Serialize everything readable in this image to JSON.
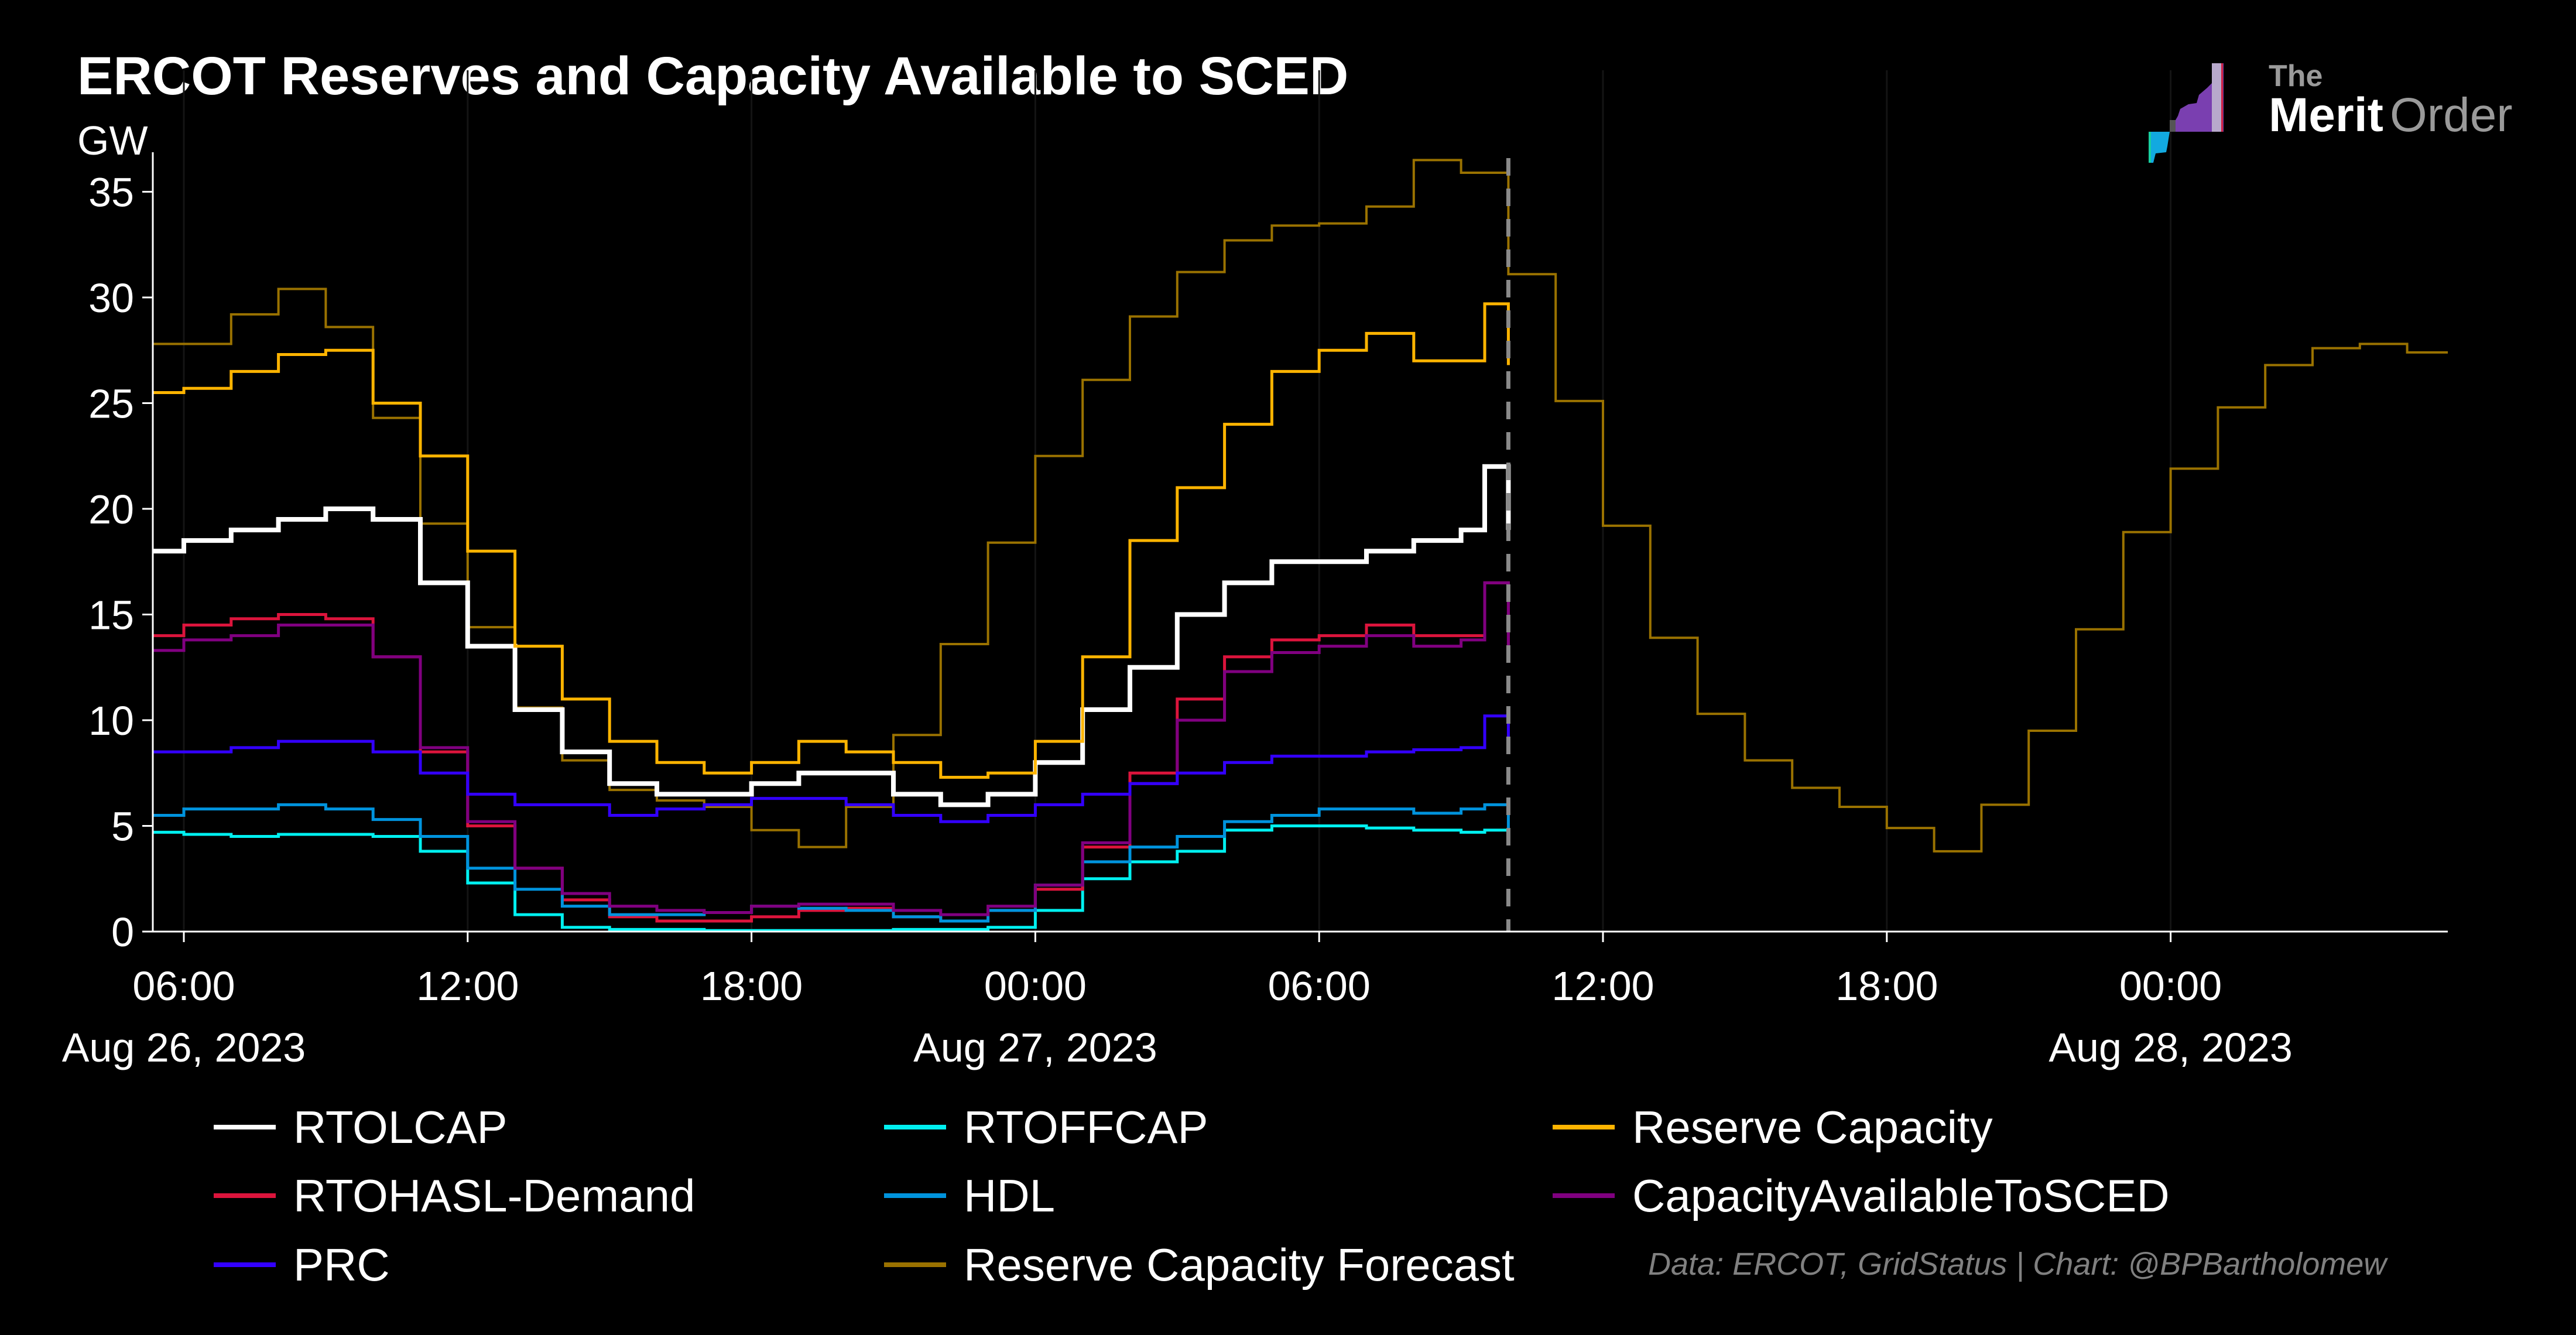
{
  "chart_data": {
    "type": "line",
    "title": "ERCOT Reserves and Capacity Available to SCED",
    "ylabel": "GW",
    "xlabel": "",
    "x_units": "hours since Aug 26, 2023 00:00",
    "xlim": [
      5.33,
      53.86
    ],
    "ylim": [
      0,
      36.5
    ],
    "yticks": [
      0,
      5,
      10,
      15,
      20,
      25,
      30,
      35
    ],
    "xticks": [
      {
        "x": 6,
        "label": "06:00",
        "date": "Aug 26, 2023"
      },
      {
        "x": 12,
        "label": "12:00",
        "date": ""
      },
      {
        "x": 18,
        "label": "18:00",
        "date": ""
      },
      {
        "x": 24,
        "label": "00:00",
        "date": "Aug 27, 2023"
      },
      {
        "x": 30,
        "label": "06:00",
        "date": ""
      },
      {
        "x": 36,
        "label": "12:00",
        "date": ""
      },
      {
        "x": 42,
        "label": "18:00",
        "date": ""
      },
      {
        "x": 48,
        "label": "00:00",
        "date": "Aug 28, 2023"
      }
    ],
    "grid": "vertical-faint",
    "now_marker_x": 34,
    "legend_placement": "bottom",
    "x": [
      5.33,
      6,
      7,
      8,
      9,
      10,
      11,
      12,
      13,
      14,
      15,
      16,
      17,
      18,
      19,
      20,
      21,
      22,
      23,
      24,
      25,
      26,
      27,
      28,
      29,
      30,
      31,
      32,
      33,
      33.5,
      34
    ],
    "series": [
      {
        "name": "RTOLCAP",
        "color": "#ffffff",
        "width": 8,
        "values": [
          18,
          18.5,
          19,
          19.5,
          20,
          19.5,
          16.5,
          13.5,
          10.5,
          8.5,
          7,
          6.5,
          6.5,
          7,
          7.5,
          7.5,
          6.5,
          6,
          6.5,
          8,
          10.5,
          12.5,
          15,
          16.5,
          17.5,
          17.5,
          18,
          18.5,
          19,
          22,
          19
        ]
      },
      {
        "name": "RTOFFCAP",
        "color": "#00f0f0",
        "width": 5,
        "values": [
          4.7,
          4.6,
          4.5,
          4.6,
          4.6,
          4.5,
          3.8,
          2.3,
          0.8,
          0.2,
          0.1,
          0.1,
          0.05,
          0.05,
          0.05,
          0.05,
          0.1,
          0.1,
          0.2,
          1,
          2.5,
          3.3,
          3.8,
          4.8,
          5,
          5,
          4.9,
          4.8,
          4.7,
          4.8,
          4.7
        ]
      },
      {
        "name": "Reserve Capacity",
        "color": "#ffb400",
        "width": 5,
        "values": [
          25.5,
          25.7,
          26.5,
          27.3,
          27.5,
          25,
          22.5,
          18,
          13.5,
          11,
          9,
          8,
          7.5,
          8,
          9,
          8.5,
          8,
          7.3,
          7.5,
          9,
          13,
          18.5,
          21,
          24,
          26.5,
          27.5,
          28.3,
          27,
          27,
          29.7,
          26.8
        ]
      },
      {
        "name": "RTOHASL-Demand",
        "color": "#dc143c",
        "width": 5,
        "values": [
          14,
          14.5,
          14.8,
          15,
          14.8,
          13,
          8.5,
          5,
          3,
          1.5,
          0.7,
          0.5,
          0.5,
          0.7,
          1,
          1.1,
          0.7,
          0.5,
          1,
          2,
          4,
          7.5,
          11,
          13,
          13.8,
          14,
          14.5,
          14,
          14,
          16.5,
          13
        ]
      },
      {
        "name": "HDL",
        "color": "#0093dd",
        "width": 5,
        "values": [
          5.5,
          5.8,
          5.8,
          6,
          5.8,
          5.3,
          4.5,
          3,
          2,
          1.2,
          0.8,
          0.8,
          0.9,
          1.2,
          1.1,
          1,
          0.7,
          0.5,
          1,
          2.2,
          3.3,
          4,
          4.5,
          5.2,
          5.5,
          5.8,
          5.8,
          5.6,
          5.8,
          6,
          4.8
        ]
      },
      {
        "name": "CapacityAvailableToSCED",
        "color": "#800080",
        "width": 5,
        "values": [
          13.3,
          13.8,
          14,
          14.5,
          14.5,
          13,
          8.7,
          5.2,
          3,
          1.8,
          1.2,
          1,
          0.9,
          1.2,
          1.3,
          1.3,
          1,
          0.8,
          1.2,
          2.2,
          4.2,
          7,
          10,
          12.3,
          13.2,
          13.5,
          14,
          13.5,
          13.8,
          16.5,
          13
        ]
      },
      {
        "name": "PRC",
        "color": "#3300ff",
        "width": 5,
        "values": [
          8.5,
          8.5,
          8.7,
          9,
          9,
          8.5,
          7.5,
          6.5,
          6,
          6,
          5.5,
          5.8,
          6,
          6.3,
          6.3,
          6,
          5.5,
          5.2,
          5.5,
          6,
          6.5,
          7,
          7.5,
          8,
          8.3,
          8.3,
          8.5,
          8.6,
          8.7,
          10.2,
          8.8
        ]
      },
      {
        "name": "Reserve Capacity Forecast",
        "color": "#9a7200",
        "width": 4,
        "x": [
          5.33,
          6,
          7,
          8,
          9,
          10,
          11,
          12,
          13,
          14,
          15,
          16,
          17,
          18,
          19,
          20,
          21,
          22,
          23,
          24,
          25,
          26,
          27,
          28,
          29,
          30,
          31,
          32,
          33,
          34,
          35,
          36,
          37,
          38,
          39,
          40,
          41,
          42,
          43,
          44,
          45,
          46,
          47,
          48,
          49,
          50,
          51,
          52,
          53,
          53.86
        ],
        "values": [
          27.8,
          27.8,
          29.2,
          30.4,
          28.6,
          24.3,
          19.3,
          14.4,
          10.6,
          8.1,
          6.7,
          6.2,
          5.9,
          4.8,
          4.0,
          5.9,
          9.3,
          13.6,
          18.4,
          22.5,
          26.1,
          29.1,
          31.2,
          32.7,
          33.4,
          33.5,
          34.3,
          36.5,
          35.9,
          31.1,
          25.1,
          19.2,
          13.9,
          10.3,
          8.1,
          6.8,
          5.9,
          4.9,
          3.8,
          6.0,
          9.5,
          14.3,
          18.9,
          21.9,
          24.8,
          26.8,
          27.6,
          27.8,
          27.4,
          27.4
        ]
      }
    ],
    "legend_order": [
      "RTOLCAP",
      "RTOFFCAP",
      "Reserve Capacity",
      "RTOHASL-Demand",
      "HDL",
      "CapacityAvailableToSCED",
      "PRC",
      "Reserve Capacity Forecast"
    ]
  },
  "credit": "Data: ERCOT, GridStatus | Chart: @BPBartholomew",
  "logo": {
    "line1": "The",
    "word1": "Merit",
    "word2": "Order"
  }
}
